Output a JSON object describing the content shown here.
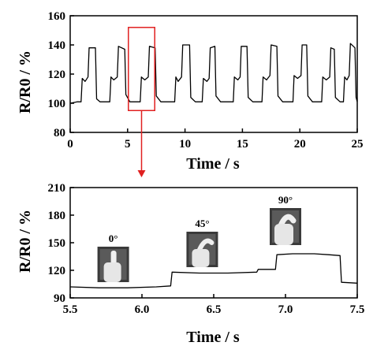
{
  "chart_data": [
    {
      "type": "line",
      "xlabel": "Time / s",
      "ylabel": "R/R0 / %",
      "xlim": [
        0,
        25
      ],
      "ylim": [
        80,
        160
      ],
      "xticks": [
        "0",
        "5",
        "10",
        "15",
        "20",
        "25"
      ],
      "yticks": [
        "80",
        "100",
        "120",
        "140",
        "160"
      ],
      "grid": false,
      "colors": {
        "line": "#000000",
        "highlight": "#e02020"
      },
      "highlight": {
        "x_range": [
          5.0,
          7.5
        ],
        "y_range": [
          95,
          152
        ]
      },
      "series": [
        {
          "values": [
            [
              0.0,
              100
            ],
            [
              0.6,
              101
            ],
            [
              0.95,
              101
            ],
            [
              1.05,
              117
            ],
            [
              1.3,
              115
            ],
            [
              1.55,
              118
            ],
            [
              1.65,
              138
            ],
            [
              2.2,
              138
            ],
            [
              2.3,
              103
            ],
            [
              2.6,
              101
            ],
            [
              3.45,
              101
            ],
            [
              3.55,
              118
            ],
            [
              3.8,
              116
            ],
            [
              4.1,
              118
            ],
            [
              4.2,
              139
            ],
            [
              4.75,
              137
            ],
            [
              4.85,
              106
            ],
            [
              5.2,
              101
            ],
            [
              6.1,
              101
            ],
            [
              6.2,
              118
            ],
            [
              6.5,
              116
            ],
            [
              6.8,
              118
            ],
            [
              6.9,
              139
            ],
            [
              7.4,
              138
            ],
            [
              7.5,
              105
            ],
            [
              7.9,
              101
            ],
            [
              9.1,
              101
            ],
            [
              9.2,
              118
            ],
            [
              9.4,
              115
            ],
            [
              9.7,
              118
            ],
            [
              9.8,
              140
            ],
            [
              10.4,
              140
            ],
            [
              10.5,
              104
            ],
            [
              10.9,
              101
            ],
            [
              11.5,
              101
            ],
            [
              11.6,
              117
            ],
            [
              11.9,
              115
            ],
            [
              12.1,
              117
            ],
            [
              12.2,
              138
            ],
            [
              12.6,
              139
            ],
            [
              12.7,
              105
            ],
            [
              13.1,
              101
            ],
            [
              14.2,
              101
            ],
            [
              14.3,
              118
            ],
            [
              14.6,
              116
            ],
            [
              14.8,
              118
            ],
            [
              14.9,
              139
            ],
            [
              15.4,
              139
            ],
            [
              15.5,
              104
            ],
            [
              15.9,
              101
            ],
            [
              16.7,
              101
            ],
            [
              16.8,
              118
            ],
            [
              17.1,
              116
            ],
            [
              17.4,
              119
            ],
            [
              17.5,
              140
            ],
            [
              18.0,
              139
            ],
            [
              18.1,
              105
            ],
            [
              18.5,
              101
            ],
            [
              19.4,
              101
            ],
            [
              19.5,
              119
            ],
            [
              19.8,
              117
            ],
            [
              20.1,
              119
            ],
            [
              20.2,
              140
            ],
            [
              20.6,
              140
            ],
            [
              20.7,
              105
            ],
            [
              21.1,
              101
            ],
            [
              21.9,
              101
            ],
            [
              22.0,
              118
            ],
            [
              22.3,
              116
            ],
            [
              22.6,
              118
            ],
            [
              22.7,
              138
            ],
            [
              23.0,
              137
            ],
            [
              23.1,
              104
            ],
            [
              23.5,
              101
            ],
            [
              23.8,
              101
            ],
            [
              23.9,
              118
            ],
            [
              24.1,
              116
            ],
            [
              24.3,
              119
            ],
            [
              24.4,
              141
            ],
            [
              24.8,
              138
            ],
            [
              24.9,
              104
            ],
            [
              25.0,
              101
            ]
          ]
        }
      ]
    },
    {
      "type": "line",
      "xlabel": "Time / s",
      "ylabel": "R/R0 / %",
      "xlim": [
        5.5,
        7.5
      ],
      "ylim": [
        90,
        210
      ],
      "xticks": [
        "5.5",
        "6.0",
        "6.5",
        "7.0",
        "7.5"
      ],
      "yticks": [
        "90",
        "120",
        "150",
        "180",
        "210"
      ],
      "grid": false,
      "colors": {
        "line": "#000000"
      },
      "annotations": [
        {
          "label": "0°",
          "x": 5.8
        },
        {
          "label": "45°",
          "x": 6.42
        },
        {
          "label": "90°",
          "x": 7.0
        }
      ],
      "series": [
        {
          "values": [
            [
              5.5,
              102
            ],
            [
              5.7,
              101
            ],
            [
              5.9,
              101
            ],
            [
              6.1,
              102
            ],
            [
              6.2,
              103
            ],
            [
              6.21,
              118
            ],
            [
              6.4,
              117
            ],
            [
              6.6,
              117
            ],
            [
              6.8,
              118
            ],
            [
              6.81,
              121
            ],
            [
              6.93,
              121
            ],
            [
              6.94,
              137
            ],
            [
              7.05,
              138
            ],
            [
              7.2,
              138
            ],
            [
              7.3,
              137
            ],
            [
              7.38,
              136
            ],
            [
              7.39,
              107
            ],
            [
              7.5,
              106
            ]
          ]
        }
      ]
    }
  ]
}
